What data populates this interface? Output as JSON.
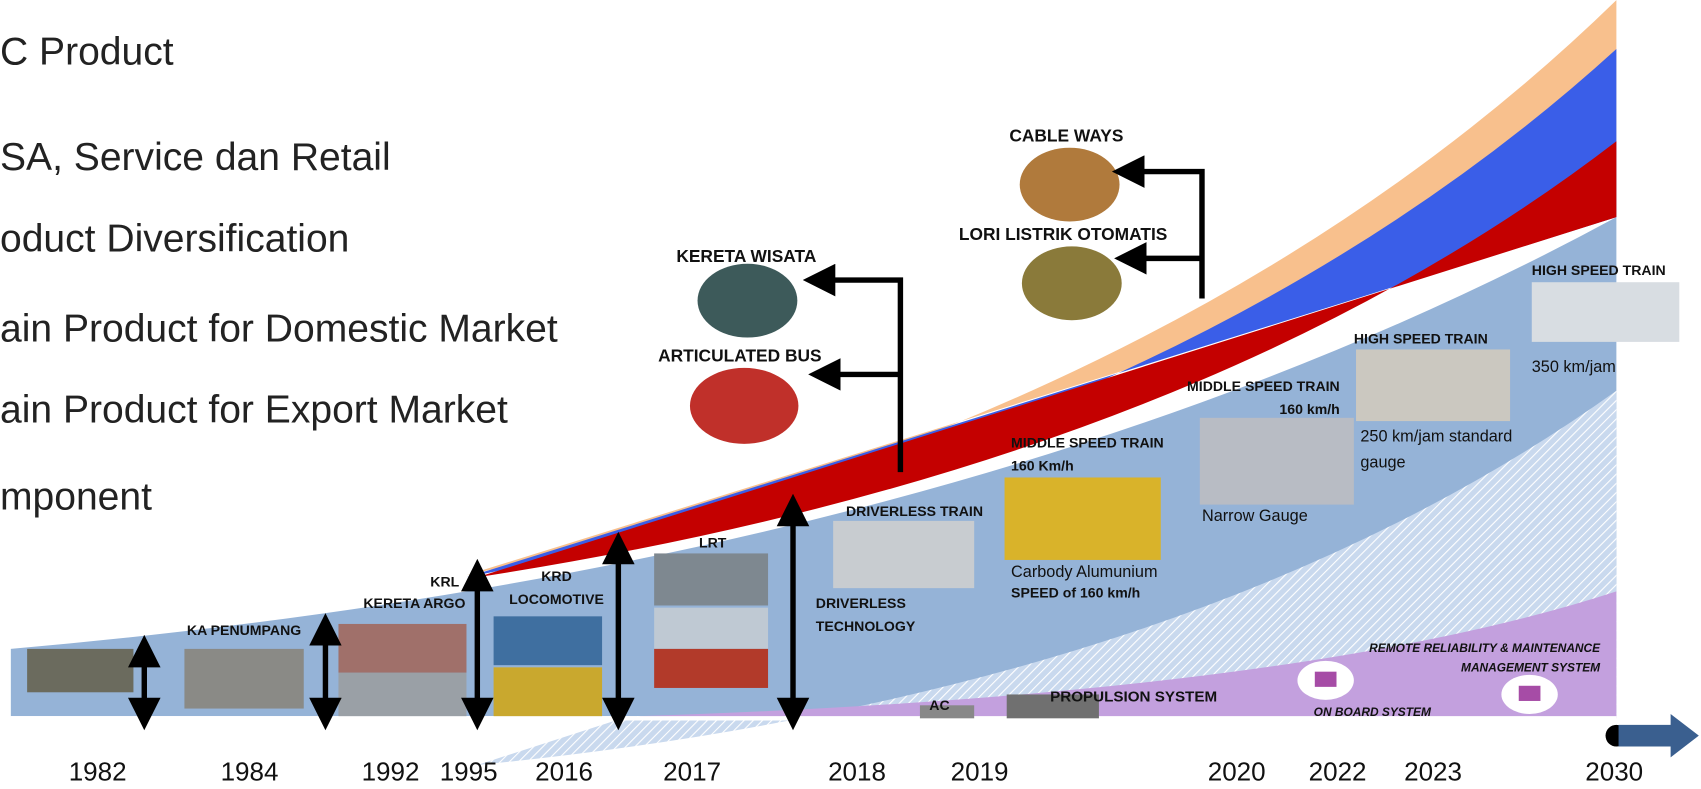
{
  "bullets": [
    "C Product",
    "SA, Service dan Retail",
    "oduct Diversification",
    "ain Product for Domestic Market",
    "ain Product for Export Market",
    "mponent"
  ],
  "labels": [
    "KA PENUMPANG",
    "KRL",
    "KERETA ARGO",
    "KRD",
    "LOCOMOTIVE",
    "LRT",
    "DRIVERLESS TRAIN",
    "DRIVERLESS",
    "TECHNOLOGY",
    "MIDDLE SPEED TRAIN",
    "160 Km/h",
    "Carbody Alumunium",
    "SPEED of 160 km/h",
    "MIDDLE SPEED TRAIN",
    "160 km/h",
    "Narrow Gauge",
    "HIGH SPEED TRAIN",
    "250 km/jam standard",
    "gauge",
    "HIGH SPEED TRAIN",
    "350 km/jam",
    "KERETA WISATA",
    "ARTICULATED BUS",
    "CABLE WAYS",
    "LORI LISTRIK OTOMATIS",
    "AC",
    "PROPULSION SYSTEM",
    "REMOTE RELIABILITY & MAINTENANCE",
    "MANAGEMENT SYSTEM",
    "ON BOARD SYSTEM"
  ],
  "years": [
    "1982",
    "1984",
    "1992",
    "1995",
    "2016",
    "2017",
    "2018",
    "2019",
    "2020",
    "2022",
    "2023",
    "2030"
  ]
}
